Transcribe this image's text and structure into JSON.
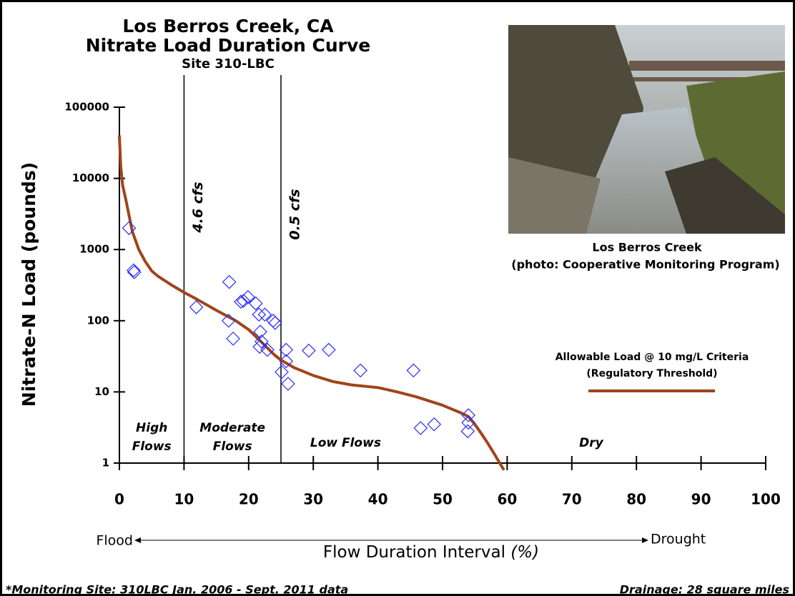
{
  "chart_data": {
    "type": "scatter",
    "title": "Los Berros Creek, CA",
    "title2": "Nitrate Load Duration Curve",
    "subtitle": "Site 310-LBC",
    "y_label": "Nitrate-N Load (pounds)",
    "x_label": "Flow Duration Interval",
    "x_label_unit": "(%)",
    "x_left": "Flood",
    "x_right": "Drought",
    "xlim": [
      0,
      100
    ],
    "xticks": [
      0,
      10,
      20,
      30,
      40,
      50,
      60,
      70,
      80,
      90,
      100
    ],
    "ylim": [
      1,
      100000
    ],
    "yticks": [
      1,
      10,
      100,
      1000,
      10000,
      100000
    ],
    "log_y": true,
    "vlines": [
      {
        "x": 10,
        "label": "4.6 cfs"
      },
      {
        "x": 25,
        "label": "0.5 cfs"
      }
    ],
    "zones": [
      {
        "lines": [
          "High",
          "Flows"
        ],
        "x": 5
      },
      {
        "lines": [
          "Moderate",
          "Flows"
        ],
        "x": 17.5
      },
      {
        "lines": [
          "Low Flows"
        ],
        "x": 35
      },
      {
        "lines": [
          "Dry"
        ],
        "x": 73
      }
    ],
    "curve": {
      "name": "Allowable Load @ 10 mg/L Criteria",
      "note": "(Regulatory Threshold)",
      "color": "#a0441a",
      "x": [
        0,
        0.2,
        0.5,
        1,
        1.5,
        2,
        3,
        4,
        5,
        6,
        8,
        10,
        12,
        15,
        18,
        20,
        22,
        24,
        25,
        27,
        30,
        33,
        36,
        40,
        43,
        46,
        50,
        53,
        54,
        55,
        56,
        57,
        58,
        59,
        59.5
      ],
      "values": [
        40000,
        15000,
        8000,
        5000,
        3000,
        1800,
        1000,
        680,
        500,
        420,
        320,
        250,
        200,
        140,
        100,
        75,
        50,
        33,
        28,
        22,
        17,
        14,
        12.5,
        11.5,
        10,
        8.5,
        6.5,
        5,
        4.5,
        3.5,
        2.6,
        1.9,
        1.35,
        0.95,
        0.8
      ]
    },
    "points": {
      "color": "#2b2bff",
      "x": [
        1.5,
        2.2,
        2.3,
        11.9,
        17.0,
        16.9,
        17.6,
        18.8,
        19.2,
        19.9,
        21.1,
        21.6,
        21.8,
        21.7,
        22.0,
        22.5,
        22.9,
        23.8,
        24.1,
        25.1,
        25.8,
        25.8,
        26.1,
        29.3,
        32.4,
        37.3,
        45.5,
        46.6,
        48.7,
        54.0,
        54.0,
        53.9
      ],
      "values": [
        2000,
        510,
        480,
        155,
        350,
        100,
        56,
        185,
        190,
        215,
        175,
        122,
        70,
        43,
        51,
        122,
        39,
        100,
        93,
        19,
        39,
        27,
        13,
        38,
        39,
        20,
        20,
        3.1,
        3.5,
        4.7,
        3.7,
        2.8
      ]
    },
    "photo_caption": "Los Berros Creek",
    "photo_credit": "(photo: Cooperative Monitoring Program)",
    "footnote": "*Monitoring Site: 310LBC Jan. 2006 - Sept. 2011 data",
    "drainage": "Drainage: 28 square miles"
  }
}
